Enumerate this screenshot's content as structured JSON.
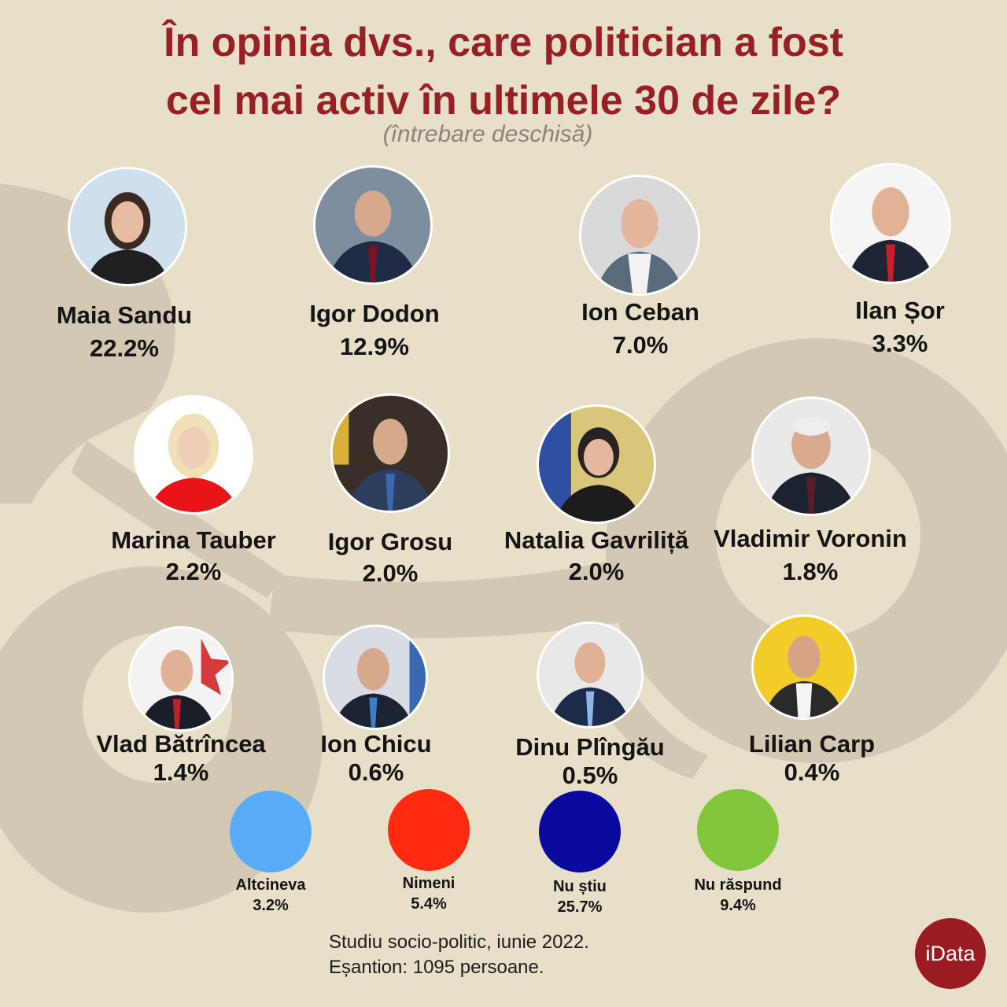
{
  "title_line1": "În opinia dvs., care politician a fost",
  "title_line2": "cel mai activ în ultimele 30 de zile?",
  "subtitle": "(întrebare deschisă)",
  "chart_data": {
    "type": "table",
    "politicians": [
      {
        "name": "Maia Sandu",
        "value": 22.2,
        "label": "22.2%"
      },
      {
        "name": "Igor Dodon",
        "value": 12.9,
        "label": "12.9%"
      },
      {
        "name": "Ion Ceban",
        "value": 7.0,
        "label": "7.0%"
      },
      {
        "name": "Ilan Șor",
        "value": 3.3,
        "label": "3.3%"
      },
      {
        "name": "Marina Tauber",
        "value": 2.2,
        "label": "2.2%"
      },
      {
        "name": "Igor Grosu",
        "value": 2.0,
        "label": "2.0%"
      },
      {
        "name": "Natalia Gavriliță",
        "value": 2.0,
        "label": "2.0%"
      },
      {
        "name": "Vladimir Voronin",
        "value": 1.8,
        "label": "1.8%"
      },
      {
        "name": "Vlad Bătrîncea",
        "value": 1.4,
        "label": "1.4%"
      },
      {
        "name": "Ion Chicu",
        "value": 0.6,
        "label": "0.6%"
      },
      {
        "name": "Dinu Plîngău",
        "value": 0.5,
        "label": "0.5%"
      },
      {
        "name": "Lilian Carp",
        "value": 0.4,
        "label": "0.4%"
      }
    ],
    "other_answers": [
      {
        "name": "Altcineva",
        "value": 3.2,
        "label": "3.2%",
        "color": "#5aabf5"
      },
      {
        "name": "Nimeni",
        "value": 5.4,
        "label": "5.4%",
        "color": "#ff2a10"
      },
      {
        "name": "Nu știu",
        "value": 25.7,
        "label": "25.7%",
        "color": "#0a0a9e"
      },
      {
        "name": "Nu răspund",
        "value": 9.4,
        "label": "9.4%",
        "color": "#82c63c"
      }
    ]
  },
  "footnote_line1": "Studiu socio-politic, iunie 2022.",
  "footnote_line2": "Eșantion: 1095 persoane.",
  "logo": "iData",
  "colors": {
    "title": "#962025",
    "background": "#e8dfc8",
    "shapes": "#d2c8b3",
    "logo": "#9b1b22"
  }
}
